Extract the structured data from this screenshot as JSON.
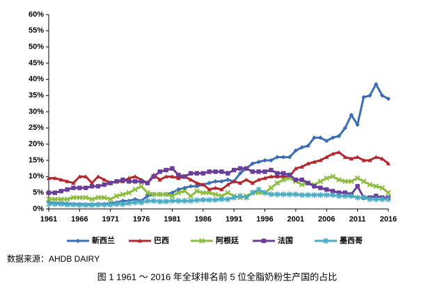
{
  "chart_data": {
    "type": "line",
    "x": [
      1961,
      1962,
      1963,
      1964,
      1965,
      1966,
      1967,
      1968,
      1969,
      1970,
      1971,
      1972,
      1973,
      1974,
      1975,
      1976,
      1977,
      1978,
      1979,
      1980,
      1981,
      1982,
      1983,
      1984,
      1985,
      1986,
      1987,
      1988,
      1989,
      1990,
      1991,
      1992,
      1993,
      1994,
      1995,
      1996,
      1997,
      1998,
      1999,
      2000,
      2001,
      2002,
      2003,
      2004,
      2005,
      2006,
      2007,
      2008,
      2009,
      2010,
      2011,
      2012,
      2013,
      2014,
      2015,
      2016
    ],
    "xlim": [
      1961,
      2016
    ],
    "xticks": [
      1961,
      1966,
      1971,
      1976,
      1981,
      1986,
      1991,
      1996,
      2001,
      2006,
      2011,
      2016
    ],
    "ylim": [
      0,
      60
    ],
    "yticks": [
      {
        "value": 0,
        "label": "0%"
      },
      {
        "value": 5,
        "label": "5%"
      },
      {
        "value": 10,
        "label": "10%"
      },
      {
        "value": 15,
        "label": "15%"
      },
      {
        "value": 20,
        "label": "20%"
      },
      {
        "value": 25,
        "label": "25%"
      },
      {
        "value": 30,
        "label": "30%"
      },
      {
        "value": 35,
        "label": "35%"
      },
      {
        "value": 40,
        "label": "40%"
      },
      {
        "value": 45,
        "label": "45%"
      },
      {
        "value": 50,
        "label": "50%"
      },
      {
        "value": 55,
        "label": "55%"
      },
      {
        "value": 60,
        "label": "60%"
      }
    ],
    "grid": false,
    "legend": "bottom",
    "series": [
      {
        "name": "新西兰",
        "color": "#3a6db5",
        "values": [
          2,
          1.8,
          1.8,
          1.7,
          1.5,
          1.5,
          1.4,
          1.4,
          1.5,
          1.5,
          1.8,
          2,
          2.5,
          2.5,
          3,
          2.5,
          4,
          4.5,
          4.5,
          4.5,
          5,
          6,
          6.5,
          7,
          7,
          7.5,
          8,
          8.5,
          8.5,
          9,
          8.5,
          11,
          12.5,
          14,
          14.5,
          15,
          15,
          16,
          16,
          16,
          18,
          19,
          19.5,
          22,
          22,
          21,
          22,
          22.5,
          25,
          29,
          26,
          34.5,
          35,
          38.5,
          35,
          34
        ]
      },
      {
        "name": "巴西",
        "color": "#b3282e",
        "values": [
          9.5,
          9.5,
          9,
          8.5,
          8,
          10,
          10,
          8,
          10,
          9,
          8,
          8.5,
          8.5,
          9.5,
          10,
          9,
          8,
          10.5,
          9,
          10,
          10,
          9.5,
          10,
          9,
          8,
          7.5,
          6,
          6.5,
          6,
          7.5,
          8.5,
          8,
          9,
          8,
          9,
          9.5,
          10,
          10,
          10,
          10,
          12.5,
          13,
          14,
          14.5,
          15,
          16,
          17,
          17.5,
          16,
          15.5,
          16,
          15,
          15,
          16,
          15.5,
          14
        ]
      },
      {
        "name": "阿根廷",
        "color": "#8cbd3f",
        "values": [
          3,
          3,
          3,
          3,
          3.5,
          3.5,
          3.5,
          3,
          3.5,
          3.5,
          3,
          4,
          4.5,
          5,
          6,
          7,
          5,
          4.5,
          4.5,
          4.5,
          4,
          5,
          5.5,
          4,
          5.5,
          5,
          5,
          4.5,
          4,
          5,
          4,
          3.5,
          4,
          5,
          5,
          5,
          6.5,
          8,
          9,
          9.5,
          8.5,
          7.5,
          8,
          7.5,
          8.5,
          9.5,
          10,
          9,
          8.5,
          8.5,
          9.5,
          8.5,
          7.5,
          7,
          6.5,
          5
        ]
      },
      {
        "name": "法国",
        "color": "#6a3d99",
        "values": [
          5,
          5,
          5.5,
          6,
          6.5,
          6.5,
          6.5,
          7,
          7,
          7.5,
          8,
          8.5,
          9,
          8.5,
          8.5,
          8.5,
          8,
          10,
          11.5,
          12,
          12.5,
          10.5,
          10,
          11,
          11,
          11,
          11.5,
          11.5,
          11.5,
          11,
          12,
          12.5,
          12.5,
          11.5,
          11.5,
          11.5,
          12,
          11,
          11,
          10.5,
          9,
          9,
          8,
          7,
          6.5,
          6,
          5.5,
          5,
          5,
          4.5,
          7,
          3.5,
          3.5,
          4,
          3.5,
          3.5
        ]
      },
      {
        "name": "墨西哥",
        "color": "#4bacc6",
        "values": [
          1.5,
          1.5,
          1.5,
          1.3,
          1.3,
          1.2,
          1.2,
          1.2,
          1.3,
          1.3,
          1.3,
          1.5,
          1.5,
          1.8,
          2,
          2,
          2.5,
          2.5,
          2.3,
          2.3,
          2.5,
          2.5,
          2.5,
          2.5,
          2.7,
          2.8,
          2.8,
          2.8,
          3,
          3,
          3.5,
          4,
          3.5,
          5,
          6,
          5,
          4.5,
          4.5,
          4.5,
          4.5,
          4.5,
          4.3,
          4.3,
          4.3,
          4.3,
          4.3,
          4.3,
          4,
          4,
          4,
          3.5,
          3.5,
          3,
          3,
          3,
          3
        ]
      }
    ],
    "source": "数据来源：AHDB DAIRY",
    "caption": "图 1 1961 ～ 2016 年全球排名前 5 位全脂奶粉生产国的占比"
  }
}
